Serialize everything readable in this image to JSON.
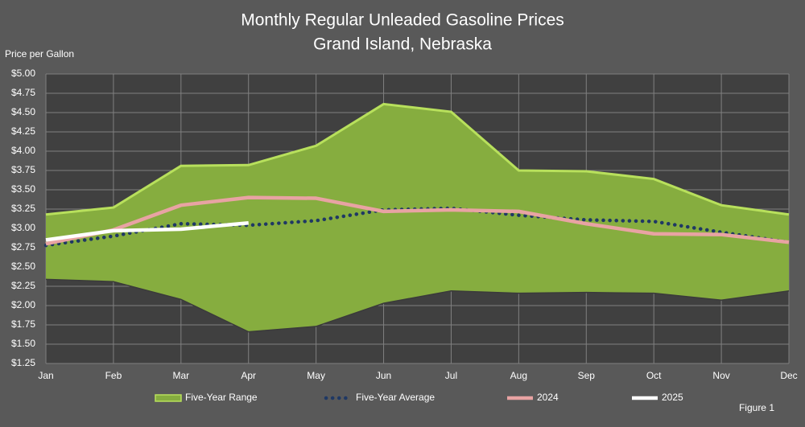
{
  "chart_data": {
    "type": "line",
    "title": "Monthly Regular Unleaded Gasoline Prices",
    "subtitle": "Grand Island, Nebraska",
    "y_label": "Price per Gallon",
    "annotation": "Figure 1",
    "categories": [
      "Jan",
      "Feb",
      "Mar",
      "Apr",
      "May",
      "Jun",
      "Jul",
      "Aug",
      "Sep",
      "Oct",
      "Nov",
      "Dec"
    ],
    "ylim": [
      1.25,
      5.0
    ],
    "yticks": [
      {
        "value": 1.25,
        "label": "$1.25"
      },
      {
        "value": 1.5,
        "label": "$1.50"
      },
      {
        "value": 1.75,
        "label": "$1.75"
      },
      {
        "value": 2.0,
        "label": "$2.00"
      },
      {
        "value": 2.25,
        "label": "$2.25"
      },
      {
        "value": 2.5,
        "label": "$2.50"
      },
      {
        "value": 2.75,
        "label": "$2.75"
      },
      {
        "value": 3.0,
        "label": "$3.00"
      },
      {
        "value": 3.25,
        "label": "$3.25"
      },
      {
        "value": 3.5,
        "label": "$3.50"
      },
      {
        "value": 3.75,
        "label": "$3.75"
      },
      {
        "value": 4.0,
        "label": "$4.00"
      },
      {
        "value": 4.25,
        "label": "$4.25"
      },
      {
        "value": 4.5,
        "label": "$4.50"
      },
      {
        "value": 4.75,
        "label": "$4.75"
      },
      {
        "value": 5.0,
        "label": "$5.00"
      }
    ],
    "grid": true,
    "range": {
      "name": "Five-Year Range",
      "color": "#86ad3f",
      "edge_color": "#b8e05c",
      "high": [
        3.18,
        3.27,
        3.81,
        3.82,
        4.07,
        4.61,
        4.51,
        3.75,
        3.74,
        3.64,
        3.3,
        3.18
      ],
      "low": [
        2.34,
        2.31,
        2.08,
        1.66,
        1.73,
        2.03,
        2.19,
        2.16,
        2.17,
        2.16,
        2.07,
        2.19
      ]
    },
    "series": [
      {
        "name": "Five-Year Average",
        "color": "#1f3864",
        "style": "dotted",
        "values": [
          2.78,
          2.9,
          3.06,
          3.04,
          3.1,
          3.24,
          3.26,
          3.17,
          3.11,
          3.09,
          2.95,
          2.82
        ]
      },
      {
        "name": "2024",
        "color": "#e8a3a3",
        "style": "solid",
        "values": [
          2.8,
          2.98,
          3.3,
          3.4,
          3.39,
          3.22,
          3.24,
          3.22,
          3.06,
          2.93,
          2.92,
          2.82
        ]
      },
      {
        "name": "2025",
        "color": "#ffffff",
        "style": "solid",
        "values": [
          2.85,
          2.97,
          2.99,
          3.07,
          null,
          null,
          null,
          null,
          null,
          null,
          null,
          null
        ]
      }
    ]
  }
}
